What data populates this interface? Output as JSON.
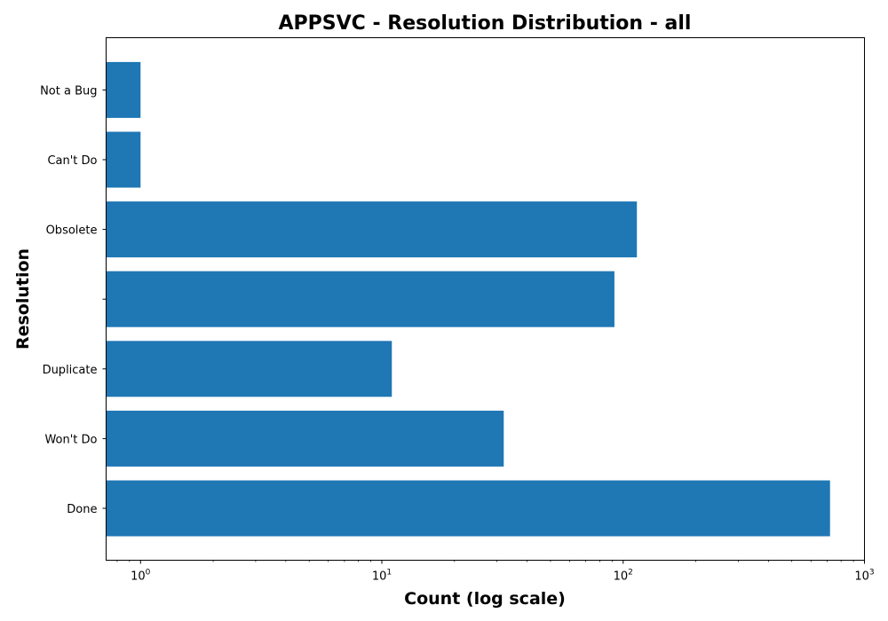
{
  "chart_data": {
    "type": "bar",
    "orientation": "horizontal",
    "title": "APPSVC - Resolution Distribution - all",
    "xlabel": "Count (log scale)",
    "ylabel": "Resolution",
    "x_scale": "log",
    "xlim": [
      0.72,
      1000
    ],
    "categories": [
      "Done",
      "Won't Do",
      "Duplicate",
      "",
      "Obsolete",
      "Can't Do",
      "Not a Bug"
    ],
    "values": [
      720,
      32,
      11,
      92,
      114,
      1,
      1
    ],
    "x_ticks": [
      {
        "base": "10",
        "exp": "0",
        "value": 1
      },
      {
        "base": "10",
        "exp": "1",
        "value": 10
      },
      {
        "base": "10",
        "exp": "2",
        "value": 100
      },
      {
        "base": "10",
        "exp": "3",
        "value": 1000
      }
    ],
    "bar_color": "#1f77b4",
    "grid": false,
    "legend": "none"
  }
}
